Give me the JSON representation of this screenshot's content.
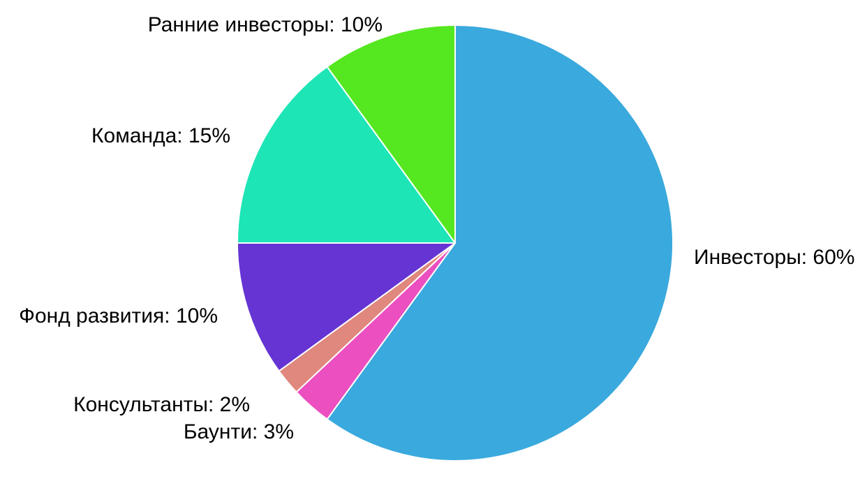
{
  "chart_data": {
    "type": "pie",
    "title": "",
    "start_angle_deg": -90,
    "direction": "clockwise",
    "legend": "none",
    "slices": [
      {
        "label": "Инвесторы: 60%",
        "name": "Инвесторы",
        "value": 60,
        "color": "#3AA9DD"
      },
      {
        "label": "Баунти: 3%",
        "name": "Баунти",
        "value": 3,
        "color": "#EB4FC0"
      },
      {
        "label": "Консультанты: 2%",
        "name": "Консультанты",
        "value": 2,
        "color": "#E0877E"
      },
      {
        "label": "Фонд развития: 10%",
        "name": "Фонд развития",
        "value": 10,
        "color": "#6534D3"
      },
      {
        "label": "Команда: 15%",
        "name": "Команда",
        "value": 15,
        "color": "#1EE5B6"
      },
      {
        "label": "Ранние инвесторы: 10%",
        "name": "Ранние инвесторы",
        "value": 10,
        "color": "#55E720"
      }
    ]
  }
}
